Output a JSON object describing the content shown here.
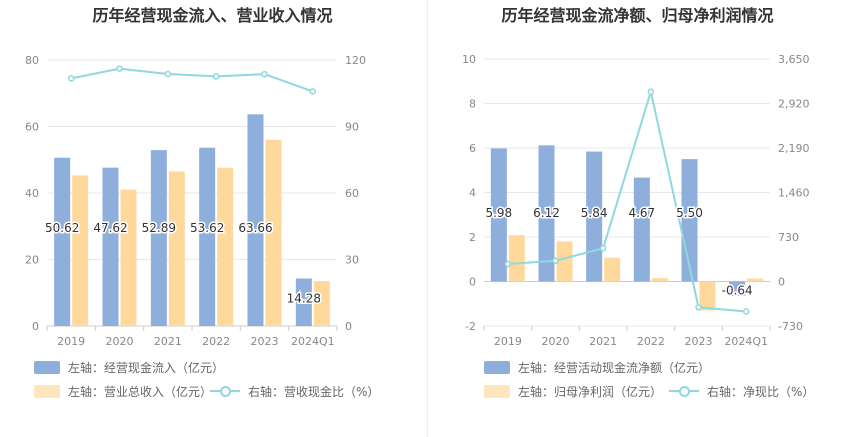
{
  "chart_data": [
    {
      "type": "bar",
      "title": "历年经营现金流入、营业收入情况",
      "categories": [
        "2019",
        "2020",
        "2021",
        "2022",
        "2023",
        "2024Q1"
      ],
      "yleft": {
        "ticks": [
          "0",
          "20",
          "40",
          "60",
          "80"
        ],
        "lim": [
          0,
          80
        ]
      },
      "yright": {
        "ticks": [
          "0",
          "30",
          "60",
          "90",
          "120"
        ],
        "lim": [
          0,
          120
        ]
      },
      "series": [
        {
          "name": "左轴：经营现金流入（亿元）",
          "type": "bar",
          "axis": "left",
          "color": "#8eaedc",
          "values": [
            50.62,
            47.62,
            52.89,
            53.62,
            63.66,
            14.28
          ],
          "labels": [
            "50.62",
            "47.62",
            "52.89",
            "53.62",
            "63.66",
            "14.28"
          ]
        },
        {
          "name": "左轴：营业总收入（亿元）",
          "type": "bar",
          "axis": "left",
          "color": "#ffd99b",
          "values": [
            45.3,
            41.0,
            46.5,
            47.6,
            56.0,
            13.5
          ]
        },
        {
          "name": "右轴：营收现金比（%）",
          "type": "line",
          "axis": "right",
          "color": "#8fd8e0",
          "values": [
            111.7,
            116.1,
            113.7,
            112.6,
            113.6,
            105.8
          ]
        }
      ]
    },
    {
      "type": "bar",
      "title": "历年经营现金流净额、归母净利润情况",
      "categories": [
        "2019",
        "2020",
        "2021",
        "2022",
        "2023",
        "2024Q1"
      ],
      "yleft": {
        "ticks": [
          "-2",
          "0",
          "2",
          "4",
          "6",
          "8",
          "10"
        ],
        "lim": [
          -2,
          10
        ]
      },
      "yright": {
        "ticks": [
          "-730",
          "0",
          "730",
          "1,460",
          "2,190",
          "2,920",
          "3,650"
        ],
        "lim": [
          -730,
          3650
        ]
      },
      "series": [
        {
          "name": "左轴：经营活动现金流净额（亿元）",
          "type": "bar",
          "axis": "left",
          "color": "#8eaedc",
          "values": [
            5.98,
            6.12,
            5.84,
            4.67,
            5.5,
            -0.64
          ],
          "labels": [
            "5.98",
            "6.12",
            "5.84",
            "4.67",
            "5.50",
            "-0.64"
          ]
        },
        {
          "name": "左轴：归母净利润（亿元）",
          "type": "bar",
          "axis": "left",
          "color": "#ffd99b",
          "values": [
            2.08,
            1.8,
            1.07,
            0.15,
            -1.3,
            0.13
          ]
        },
        {
          "name": "右轴：净现比（%）",
          "type": "line",
          "axis": "right",
          "color": "#8fd8e0",
          "values": [
            287,
            340,
            545,
            3113,
            -423,
            -492
          ]
        }
      ]
    }
  ]
}
